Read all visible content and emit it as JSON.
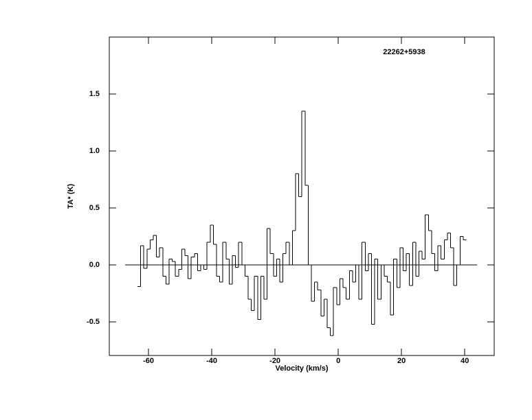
{
  "chart_data": {
    "type": "step",
    "title": "22262+5938",
    "xlabel": "Velocity (km/s)",
    "ylabel": "TA* (K)",
    "x": [
      -63,
      -62,
      -61,
      -60,
      -59,
      -58,
      -57,
      -56,
      -55,
      -54,
      -53,
      -52,
      -51,
      -50,
      -49,
      -48,
      -47,
      -46,
      -45,
      -44,
      -43,
      -42,
      -41,
      -40,
      -39,
      -38,
      -37,
      -36,
      -35,
      -34,
      -33,
      -32,
      -31,
      -30,
      -29,
      -28,
      -27,
      -26,
      -25,
      -24,
      -23,
      -22,
      -21,
      -20,
      -19,
      -18,
      -17,
      -16,
      -15,
      -14,
      -13,
      -12,
      -11,
      -10,
      -9,
      -8,
      -7,
      -6,
      -5,
      -4,
      -3,
      -2,
      -1,
      0,
      1,
      2,
      3,
      4,
      5,
      6,
      7,
      8,
      9,
      10,
      11,
      12,
      13,
      14,
      15,
      16,
      17,
      18,
      19,
      20,
      21,
      22,
      23,
      24,
      25,
      26,
      27,
      28,
      29,
      30,
      31,
      32,
      33,
      34,
      35,
      36,
      37,
      38,
      39,
      40
    ],
    "values": [
      -0.19,
      0.17,
      -0.03,
      0.14,
      0.22,
      0.26,
      0.07,
      0.15,
      -0.1,
      -0.17,
      0.05,
      0.03,
      -0.1,
      -0.04,
      0.14,
      0.08,
      -0.12,
      0.07,
      0.1,
      -0.05,
      0.0,
      -0.04,
      0.2,
      0.35,
      0.18,
      -0.1,
      -0.15,
      0.2,
      0.05,
      -0.17,
      0.08,
      -0.02,
      0.2,
      0.0,
      -0.1,
      -0.3,
      -0.4,
      -0.1,
      -0.48,
      -0.1,
      -0.3,
      0.32,
      0.1,
      -0.1,
      0.05,
      -0.15,
      0.1,
      0.2,
      0.0,
      0.3,
      0.8,
      0.6,
      1.35,
      0.7,
      0.0,
      -0.32,
      -0.15,
      -0.22,
      -0.45,
      -0.3,
      -0.55,
      -0.62,
      -0.2,
      -0.35,
      -0.12,
      -0.2,
      -0.3,
      -0.05,
      -0.15,
      0.0,
      -0.3,
      0.2,
      -0.05,
      0.1,
      -0.52,
      0.05,
      -0.3,
      0.0,
      -0.1,
      -0.15,
      -0.44,
      0.05,
      -0.2,
      0.15,
      -0.05,
      0.1,
      -0.18,
      0.2,
      -0.1,
      0.12,
      0.05,
      0.44,
      0.3,
      0.1,
      -0.05,
      0.17,
      0.05,
      0.22,
      0.28,
      0.15,
      -0.18,
      0.0,
      0.25,
      0.22
    ],
    "xlim": [
      -72.4,
      49.3
    ],
    "ylim": [
      -0.795,
      2.0
    ],
    "xticks": [
      -60,
      -40,
      -20,
      0,
      20,
      40
    ],
    "yticks": [
      -0.5,
      {
        "value": 0,
        "label": "0.0"
      },
      0.5,
      {
        "value": 1,
        "label": "1.0"
      },
      1.5
    ],
    "reference_line": {
      "y": 0,
      "x": [
        -67.4,
        43.9
      ]
    }
  }
}
